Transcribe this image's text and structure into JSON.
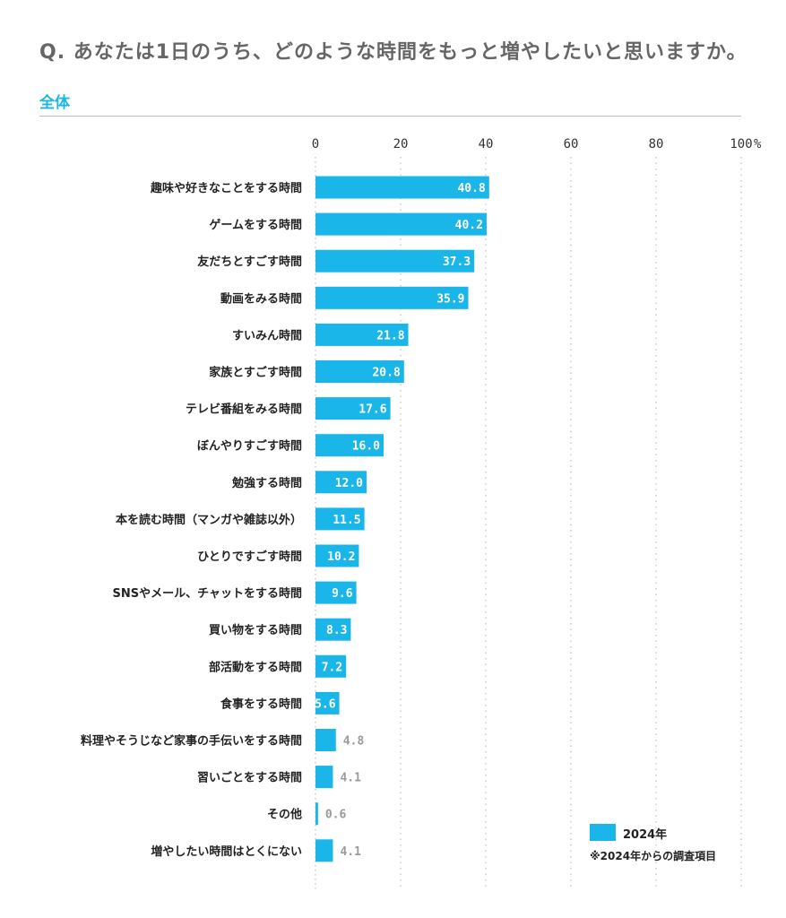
{
  "question": "Q. あなたは1日のうち、どのような時間をもっと増やしたいと思いますか。",
  "subtitle": "全体",
  "legend": {
    "label": "2024年",
    "note": "※2024年からの調査項目"
  },
  "colors": {
    "bar": "#1ab6ea",
    "outside_value": "#9a9a9a",
    "grid": "#bdbdbd"
  },
  "chart_data": {
    "type": "bar",
    "orientation": "horizontal",
    "xlim": [
      0,
      100
    ],
    "ticks": [
      0,
      20,
      40,
      60,
      80,
      100
    ],
    "tick_labels": [
      "0",
      "20",
      "40",
      "60",
      "80",
      "100"
    ],
    "unit_label": "%",
    "categories": [
      "趣味や好きなことをする時間",
      "ゲームをする時間",
      "友だちとすごす時間",
      "動画をみる時間",
      "すいみん時間",
      "家族とすごす時間",
      "テレビ番組をみる時間",
      "ぼんやりすごす時間",
      "勉強する時間",
      "本を読む時間（マンガや雑誌以外）",
      "ひとりですごす時間",
      "SNSやメール、チャットをする時間",
      "買い物をする時間",
      "部活動をする時間",
      "食事をする時間",
      "料理やそうじなど家事の手伝いをする時間",
      "習いごとをする時間",
      "その他",
      "増やしたい時間はとくにない"
    ],
    "series": [
      {
        "name": "2024年",
        "values": [
          40.8,
          40.2,
          37.3,
          35.9,
          21.8,
          20.8,
          17.6,
          16.0,
          12.0,
          11.5,
          10.2,
          9.6,
          8.3,
          7.2,
          5.6,
          4.8,
          4.1,
          0.6,
          4.1
        ],
        "value_labels": [
          "40.8",
          "40.2",
          "37.3",
          "35.9",
          "21.8",
          "20.8",
          "17.6",
          "16.0",
          "12.0",
          "11.5",
          "10.2",
          "9.6",
          "8.3",
          "7.2",
          "5.6",
          "4.8",
          "4.1",
          "0.6",
          "4.1"
        ]
      }
    ],
    "grid": "vertical dotted",
    "legend_position": "bottom-right"
  }
}
